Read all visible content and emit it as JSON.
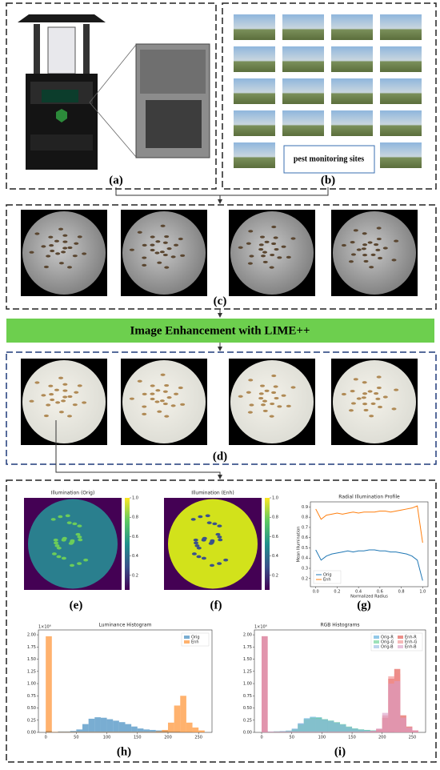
{
  "panels": {
    "a": "(a)",
    "b": "(b)",
    "c": "(c)",
    "d": "(d)",
    "e": "(e)",
    "f": "(f)",
    "g": "(g)",
    "h": "(h)",
    "i": "(i)"
  },
  "sites_label": "pest monitoring sites",
  "banner": "Image Enhancement with LIME++",
  "chart_data": [
    {
      "type": "heatmap",
      "title": "Illumination (Orig)",
      "colorbar_lim": [
        0.05,
        1.0
      ],
      "colorbar_ticks": [
        0.2,
        0.4,
        0.6,
        0.8,
        {
          "value": 1.0,
          "label": "1.0"
        }
      ]
    },
    {
      "type": "heatmap",
      "title": "Illumination (Enh)",
      "colorbar_lim": [
        0.05,
        1.0
      ],
      "colorbar_ticks": [
        0.2,
        0.4,
        0.6,
        0.8,
        {
          "value": 1.0,
          "label": "1.0"
        }
      ]
    },
    {
      "type": "line",
      "title": "Radial Illumination Profile",
      "xlabel": "Normalized Radius",
      "ylabel": "Mean Illumination",
      "x": [
        0,
        0.05,
        0.1,
        0.15,
        0.2,
        0.25,
        0.3,
        0.35,
        0.4,
        0.45,
        0.5,
        0.55,
        0.6,
        0.65,
        0.7,
        0.75,
        0.8,
        0.85,
        0.9,
        0.95,
        1.0
      ],
      "series": [
        {
          "name": "Orig",
          "color": "#1f77b4",
          "values": [
            0.48,
            0.38,
            0.42,
            0.44,
            0.45,
            0.46,
            0.47,
            0.46,
            0.47,
            0.47,
            0.48,
            0.48,
            0.47,
            0.47,
            0.46,
            0.46,
            0.45,
            0.44,
            0.42,
            0.38,
            0.18
          ]
        },
        {
          "name": "Enh",
          "color": "#ff7f0e",
          "values": [
            0.88,
            0.78,
            0.82,
            0.83,
            0.84,
            0.83,
            0.84,
            0.85,
            0.84,
            0.85,
            0.85,
            0.85,
            0.86,
            0.86,
            0.85,
            0.86,
            0.87,
            0.88,
            0.89,
            0.91,
            0.55
          ]
        }
      ],
      "xlim": [
        -0.05,
        1.05
      ],
      "ylim": [
        0.12,
        0.95
      ],
      "xticks": [
        {
          "value": 0,
          "label": "0.0"
        },
        0.2,
        0.4,
        0.6,
        0.8,
        {
          "value": 1.0,
          "label": "1.0"
        }
      ],
      "yticks": [
        0.2,
        0.3,
        0.4,
        0.5,
        0.6,
        0.7,
        0.8,
        0.9
      ],
      "legend": "lower left"
    },
    {
      "type": "histogram",
      "title": "Luminance Histogram",
      "offset_label": "1×10⁶",
      "bins": [
        0,
        10,
        20,
        30,
        40,
        50,
        60,
        70,
        80,
        90,
        100,
        110,
        120,
        130,
        140,
        150,
        160,
        170,
        180,
        190,
        200,
        210,
        220,
        230,
        240,
        250,
        260
      ],
      "series": [
        {
          "name": "Orig",
          "color": "#1f77b4",
          "values": [
            0.03,
            0.01,
            0.02,
            0.02,
            0.03,
            0.06,
            0.17,
            0.28,
            0.31,
            0.3,
            0.27,
            0.24,
            0.21,
            0.17,
            0.12,
            0.08,
            0.06,
            0.05,
            0.04,
            0.03,
            0.02,
            0.02,
            0.01,
            0.01,
            0,
            0
          ]
        },
        {
          "name": "Enh",
          "color": "#ff7f0e",
          "values": [
            1.97,
            0.01,
            0.01,
            0.01,
            0.01,
            0.01,
            0.01,
            0.01,
            0.01,
            0.01,
            0.01,
            0.01,
            0.01,
            0.01,
            0.01,
            0.01,
            0.01,
            0.01,
            0.02,
            0.05,
            0.2,
            0.55,
            0.75,
            0.2,
            0.1,
            0.04
          ]
        }
      ],
      "xlim": [
        -12,
        272
      ],
      "ylim": [
        0,
        2.1
      ],
      "xticks": [
        0,
        50,
        100,
        150,
        200,
        250
      ],
      "yticks": [
        {
          "value": 0,
          "label": "0.00"
        },
        {
          "value": 0.25,
          "label": "0.25"
        },
        {
          "value": 0.5,
          "label": "0.50"
        },
        {
          "value": 0.75,
          "label": "0.75"
        },
        {
          "value": 1,
          "label": "1.00"
        },
        {
          "value": 1.25,
          "label": "1.25"
        },
        {
          "value": 1.5,
          "label": "1.50"
        },
        {
          "value": 1.75,
          "label": "1.75"
        },
        {
          "value": 2,
          "label": "2.00"
        }
      ],
      "legend": "upper right"
    },
    {
      "type": "histogram",
      "title": "RGB Histograms",
      "offset_label": "1×10⁶",
      "bins": [
        0,
        10,
        20,
        30,
        40,
        50,
        60,
        70,
        80,
        90,
        100,
        110,
        120,
        130,
        140,
        150,
        160,
        170,
        180,
        190,
        200,
        210,
        220,
        230,
        240,
        250,
        260
      ],
      "series": [
        {
          "name": "Orig-R",
          "color": "#4aa3d8",
          "values": [
            0.03,
            0.01,
            0.02,
            0.02,
            0.03,
            0.07,
            0.18,
            0.29,
            0.32,
            0.31,
            0.27,
            0.24,
            0.2,
            0.16,
            0.11,
            0.08,
            0.06,
            0.05,
            0.04,
            0.03,
            0.02,
            0.02,
            0.01,
            0.01,
            0,
            0
          ]
        },
        {
          "name": "Orig-G",
          "color": "#5ccf8a",
          "values": [
            0.03,
            0.01,
            0.02,
            0.02,
            0.03,
            0.06,
            0.16,
            0.27,
            0.3,
            0.3,
            0.27,
            0.24,
            0.21,
            0.17,
            0.12,
            0.08,
            0.06,
            0.05,
            0.04,
            0.03,
            0.02,
            0.02,
            0.01,
            0.01,
            0,
            0
          ]
        },
        {
          "name": "Orig-B",
          "color": "#8fb8e0",
          "values": [
            0.04,
            0.02,
            0.02,
            0.03,
            0.04,
            0.08,
            0.19,
            0.27,
            0.29,
            0.28,
            0.26,
            0.23,
            0.2,
            0.16,
            0.11,
            0.07,
            0.05,
            0.04,
            0.03,
            0.03,
            0.02,
            0.01,
            0.01,
            0,
            0,
            0
          ]
        },
        {
          "name": "Enh-R",
          "color": "#e0453a",
          "values": [
            1.97,
            0.01,
            0.01,
            0.01,
            0.01,
            0.01,
            0.01,
            0.01,
            0.01,
            0.01,
            0.01,
            0.01,
            0.01,
            0.01,
            0.01,
            0.01,
            0.01,
            0.01,
            0.02,
            0.06,
            0.3,
            1.1,
            1.3,
            0.35,
            0.12,
            0.04
          ]
        },
        {
          "name": "Enh-G",
          "color": "#f08a8a",
          "values": [
            1.97,
            0.01,
            0.01,
            0.01,
            0.01,
            0.01,
            0.01,
            0.01,
            0.01,
            0.01,
            0.01,
            0.01,
            0.01,
            0.01,
            0.01,
            0.01,
            0.01,
            0.01,
            0.02,
            0.07,
            0.35,
            1.15,
            1.2,
            0.3,
            0.1,
            0.04
          ]
        },
        {
          "name": "Enh-B",
          "color": "#d99bc4",
          "values": [
            1.97,
            0.01,
            0.01,
            0.01,
            0.01,
            0.01,
            0.01,
            0.01,
            0.01,
            0.01,
            0.01,
            0.01,
            0.01,
            0.01,
            0.01,
            0.01,
            0.01,
            0.02,
            0.03,
            0.08,
            0.4,
            1.0,
            1.05,
            0.3,
            0.1,
            0.04
          ]
        }
      ],
      "xlim": [
        -12,
        272
      ],
      "ylim": [
        0,
        2.1
      ],
      "xticks": [
        0,
        50,
        100,
        150,
        200,
        250
      ],
      "yticks": [
        {
          "value": 0,
          "label": "0.00"
        },
        {
          "value": 0.25,
          "label": "0.25"
        },
        {
          "value": 0.5,
          "label": "0.50"
        },
        {
          "value": 0.75,
          "label": "0.75"
        },
        {
          "value": 1,
          "label": "1.00"
        },
        {
          "value": 1.25,
          "label": "1.25"
        },
        {
          "value": 1.5,
          "label": "1.50"
        },
        {
          "value": 1.75,
          "label": "1.75"
        },
        {
          "value": 2,
          "label": "2.00"
        }
      ],
      "legend": "upper right"
    }
  ]
}
